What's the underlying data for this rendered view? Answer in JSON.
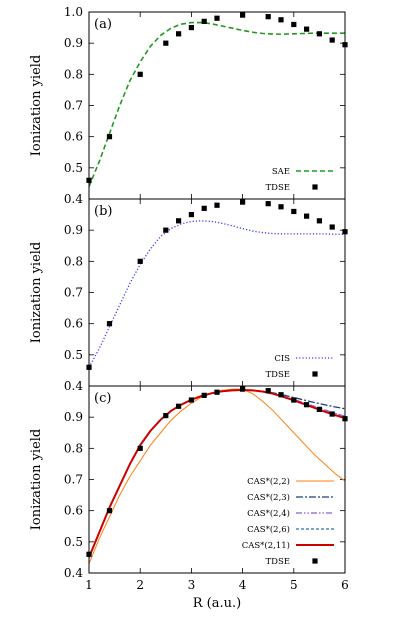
{
  "chart_data": [
    {
      "type": "line",
      "panel_label": "(a)",
      "ylabel": "Ionization yield",
      "xlim": [
        1,
        6
      ],
      "ylim": [
        0.4,
        1.0
      ],
      "yticks": [
        "0.4",
        "0.5",
        "0.6",
        "0.7",
        "0.8",
        "0.9",
        "1.0"
      ],
      "series": [
        {
          "name": "SAE",
          "style": "dashed",
          "color": "#1f9a1f",
          "x": [
            1.0,
            1.2,
            1.4,
            1.6,
            1.8,
            2.0,
            2.2,
            2.4,
            2.6,
            2.8,
            3.0,
            3.2,
            3.4,
            3.6,
            3.8,
            4.0,
            4.2,
            4.4,
            4.6,
            4.8,
            5.0,
            5.2,
            5.4,
            5.6,
            5.8,
            6.0
          ],
          "y": [
            0.44,
            0.52,
            0.61,
            0.7,
            0.78,
            0.84,
            0.89,
            0.925,
            0.948,
            0.961,
            0.966,
            0.966,
            0.962,
            0.955,
            0.948,
            0.941,
            0.935,
            0.931,
            0.929,
            0.929,
            0.93,
            0.931,
            0.932,
            0.932,
            0.932,
            0.932
          ]
        }
      ],
      "points": {
        "name": "TDSE",
        "marker": "square",
        "color": "#000000",
        "x": [
          1.0,
          1.4,
          2.0,
          2.5,
          2.75,
          3.0,
          3.25,
          3.5,
          4.0,
          4.5,
          4.75,
          5.0,
          5.25,
          5.5,
          5.75,
          6.0
        ],
        "y": [
          0.46,
          0.6,
          0.8,
          0.9,
          0.93,
          0.95,
          0.97,
          0.98,
          0.99,
          0.985,
          0.975,
          0.96,
          0.945,
          0.93,
          0.91,
          0.895
        ]
      },
      "legend": {
        "position": "bottom-right",
        "entries": [
          "SAE",
          "TDSE"
        ]
      }
    },
    {
      "type": "line",
      "panel_label": "(b)",
      "ylabel": "Ionization yield",
      "xlim": [
        1,
        6
      ],
      "ylim": [
        0.4,
        1.0
      ],
      "yticks": [
        "0.4",
        "0.5",
        "0.6",
        "0.7",
        "0.8",
        "0.9",
        ""
      ],
      "series": [
        {
          "name": "CIS",
          "style": "dotted",
          "color": "#3a3aff",
          "x": [
            1.0,
            1.2,
            1.4,
            1.6,
            1.8,
            2.0,
            2.2,
            2.4,
            2.6,
            2.8,
            3.0,
            3.2,
            3.4,
            3.6,
            3.8,
            4.0,
            4.2,
            4.4,
            4.6,
            4.8,
            5.0,
            5.2,
            5.4,
            5.6,
            5.8,
            6.0
          ],
          "y": [
            0.46,
            0.52,
            0.59,
            0.66,
            0.73,
            0.79,
            0.84,
            0.88,
            0.905,
            0.92,
            0.928,
            0.93,
            0.928,
            0.922,
            0.914,
            0.905,
            0.897,
            0.892,
            0.889,
            0.888,
            0.888,
            0.888,
            0.888,
            0.888,
            0.887,
            0.887
          ]
        }
      ],
      "points": {
        "name": "TDSE",
        "marker": "square",
        "color": "#000000",
        "x": [
          1.0,
          1.4,
          2.0,
          2.5,
          2.75,
          3.0,
          3.25,
          3.5,
          4.0,
          4.5,
          4.75,
          5.0,
          5.25,
          5.5,
          5.75,
          6.0
        ],
        "y": [
          0.46,
          0.6,
          0.8,
          0.9,
          0.93,
          0.95,
          0.97,
          0.98,
          0.99,
          0.985,
          0.975,
          0.96,
          0.945,
          0.93,
          0.91,
          0.895
        ]
      },
      "legend": {
        "position": "bottom-right",
        "entries": [
          "CIS",
          "TDSE"
        ]
      }
    },
    {
      "type": "line",
      "panel_label": "(c)",
      "ylabel": "Ionization yield",
      "xlabel": "R (a.u.)",
      "xlim": [
        1,
        6
      ],
      "ylim": [
        0.4,
        1.0
      ],
      "xticks": [
        "1",
        "2",
        "3",
        "4",
        "5",
        "6"
      ],
      "yticks": [
        "0.4",
        "0.5",
        "0.6",
        "0.7",
        "0.8",
        "0.9",
        ""
      ],
      "series": [
        {
          "name": "CAS*(2,2)",
          "style": "solid-thin",
          "color": "#ff7f0e",
          "x": [
            1.0,
            1.2,
            1.4,
            1.6,
            1.8,
            2.0,
            2.2,
            2.4,
            2.6,
            2.8,
            3.0,
            3.2,
            3.4,
            3.6,
            3.8,
            4.0,
            4.2,
            4.4,
            4.6,
            4.8,
            5.0,
            5.2,
            5.4,
            5.6,
            5.8,
            6.0
          ],
          "y": [
            0.43,
            0.51,
            0.58,
            0.65,
            0.71,
            0.76,
            0.81,
            0.85,
            0.89,
            0.92,
            0.945,
            0.965,
            0.978,
            0.986,
            0.99,
            0.99,
            0.975,
            0.95,
            0.92,
            0.885,
            0.85,
            0.815,
            0.78,
            0.75,
            0.72,
            0.695
          ]
        },
        {
          "name": "CAS*(2,3)",
          "style": "dash-dot",
          "color": "#1f3f7f",
          "x": [
            1.0,
            1.2,
            1.4,
            1.6,
            1.8,
            2.0,
            2.2,
            2.4,
            2.6,
            2.8,
            3.0,
            3.2,
            3.4,
            3.6,
            3.8,
            4.0,
            4.2,
            4.4,
            4.6,
            4.8,
            5.0,
            5.2,
            5.4,
            5.6,
            5.8,
            6.0
          ],
          "y": [
            0.45,
            0.53,
            0.61,
            0.68,
            0.75,
            0.81,
            0.856,
            0.892,
            0.92,
            0.94,
            0.956,
            0.968,
            0.977,
            0.983,
            0.986,
            0.987,
            0.986,
            0.983,
            0.978,
            0.971,
            0.963,
            0.955,
            0.947,
            0.94,
            0.933,
            0.927
          ]
        },
        {
          "name": "CAS*(2,4)",
          "style": "dash-dot-dot",
          "color": "#8a5ad9",
          "x": [
            1.0,
            1.2,
            1.4,
            1.6,
            1.8,
            2.0,
            2.2,
            2.4,
            2.6,
            2.8,
            3.0,
            3.2,
            3.4,
            3.6,
            3.8,
            4.0,
            4.2,
            4.4,
            4.6,
            4.8,
            5.0,
            5.2,
            5.4,
            5.6,
            5.8,
            6.0
          ],
          "y": [
            0.45,
            0.53,
            0.61,
            0.68,
            0.75,
            0.81,
            0.856,
            0.892,
            0.92,
            0.94,
            0.956,
            0.968,
            0.977,
            0.983,
            0.986,
            0.987,
            0.986,
            0.982,
            0.976,
            0.967,
            0.957,
            0.946,
            0.935,
            0.924,
            0.913,
            0.903
          ]
        },
        {
          "name": "CAS*(2,6)",
          "style": "dashed-fine",
          "color": "#2a6fb4",
          "x": [
            1.0,
            1.2,
            1.4,
            1.6,
            1.8,
            2.0,
            2.2,
            2.4,
            2.6,
            2.8,
            3.0,
            3.2,
            3.4,
            3.6,
            3.8,
            4.0,
            4.2,
            4.4,
            4.6,
            4.8,
            5.0,
            5.2,
            5.4,
            5.6,
            5.8,
            6.0
          ],
          "y": [
            0.45,
            0.53,
            0.61,
            0.68,
            0.75,
            0.81,
            0.856,
            0.892,
            0.92,
            0.94,
            0.956,
            0.968,
            0.977,
            0.983,
            0.986,
            0.987,
            0.986,
            0.982,
            0.976,
            0.966,
            0.955,
            0.943,
            0.931,
            0.919,
            0.908,
            0.898
          ]
        },
        {
          "name": "CAS*(2,11)",
          "style": "solid-thick",
          "color": "#cc0000",
          "x": [
            1.0,
            1.2,
            1.4,
            1.6,
            1.8,
            2.0,
            2.2,
            2.4,
            2.6,
            2.8,
            3.0,
            3.2,
            3.4,
            3.6,
            3.8,
            4.0,
            4.2,
            4.4,
            4.6,
            4.8,
            5.0,
            5.2,
            5.4,
            5.6,
            5.8,
            6.0
          ],
          "y": [
            0.45,
            0.53,
            0.61,
            0.68,
            0.75,
            0.81,
            0.856,
            0.892,
            0.92,
            0.94,
            0.956,
            0.968,
            0.977,
            0.983,
            0.986,
            0.987,
            0.986,
            0.982,
            0.975,
            0.965,
            0.954,
            0.942,
            0.93,
            0.918,
            0.907,
            0.897
          ]
        }
      ],
      "points": {
        "name": "TDSE",
        "marker": "square",
        "color": "#000000",
        "x": [
          1.0,
          1.4,
          2.0,
          2.5,
          2.75,
          3.0,
          3.25,
          3.5,
          4.0,
          4.5,
          4.75,
          5.0,
          5.25,
          5.5,
          5.75,
          6.0
        ],
        "y": [
          0.46,
          0.6,
          0.8,
          0.905,
          0.935,
          0.955,
          0.97,
          0.98,
          0.99,
          0.985,
          0.972,
          0.955,
          0.94,
          0.925,
          0.91,
          0.895
        ]
      },
      "legend": {
        "position": "bottom-right",
        "entries": [
          "CAS*(2,2)",
          "CAS*(2,3)",
          "CAS*(2,4)",
          "CAS*(2,6)",
          "CAS*(2,11)",
          "TDSE"
        ]
      }
    }
  ]
}
